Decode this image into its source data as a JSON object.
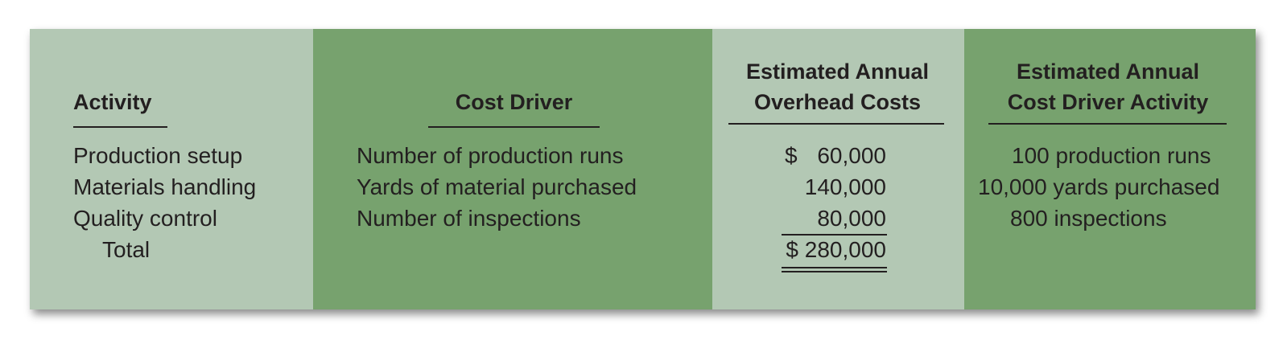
{
  "headers": {
    "activity": "Activity",
    "cost_driver": "Cost Driver",
    "overhead_line1": "Estimated Annual",
    "overhead_line2": "Overhead Costs",
    "driver_activity_line1": "Estimated Annual",
    "driver_activity_line2": "Cost Driver Activity"
  },
  "rows": [
    {
      "activity": "Production setup",
      "cost_driver": "Number of production runs",
      "cost": "$   60,000",
      "driver_activity": "100 production runs"
    },
    {
      "activity": "Materials handling",
      "cost_driver": "Yards of material purchased",
      "cost": "140,000",
      "driver_activity": "10,000 yards purchased"
    },
    {
      "activity": "Quality control",
      "cost_driver": "Number of inspections",
      "cost": "80,000",
      "driver_activity": "800 inspections"
    }
  ],
  "total": {
    "label": "Total",
    "cost": "$ 280,000"
  },
  "colors": {
    "light_green": "#b3c8b4",
    "dark_green": "#77a26e"
  }
}
